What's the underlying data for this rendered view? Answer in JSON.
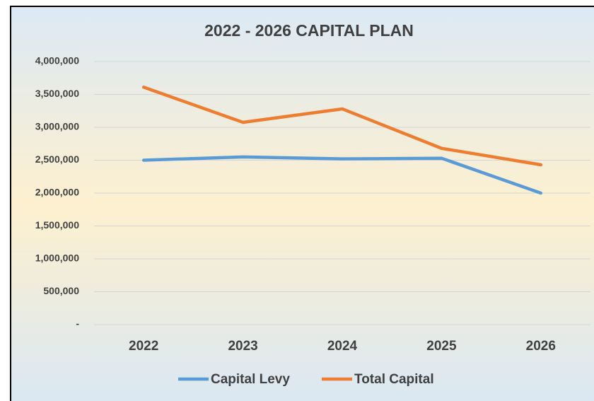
{
  "chart_data": {
    "type": "line",
    "title": "2022 - 2026 CAPITAL PLAN",
    "categories": [
      "2022",
      "2023",
      "2024",
      "2025",
      "2026"
    ],
    "series": [
      {
        "name": "Capital Levy",
        "color": "#5b9bd5",
        "values": [
          2500000,
          2550000,
          2520000,
          2530000,
          2000000
        ]
      },
      {
        "name": "Total Capital",
        "color": "#ed7d31",
        "values": [
          3610000,
          3075000,
          3280000,
          2680000,
          2430000
        ]
      }
    ],
    "ylim": [
      0,
      4000000
    ],
    "yticks": [
      {
        "value": 0,
        "label": "-"
      },
      {
        "value": 500000,
        "label": "500,000"
      },
      {
        "value": 1000000,
        "label": "1,000,000"
      },
      {
        "value": 1500000,
        "label": "1,500,000"
      },
      {
        "value": 2000000,
        "label": "2,000,000"
      },
      {
        "value": 2500000,
        "label": "2,500,000"
      },
      {
        "value": 3000000,
        "label": "3,000,000"
      },
      {
        "value": 3500000,
        "label": "3,500,000"
      },
      {
        "value": 4000000,
        "label": "4,000,000"
      }
    ],
    "grid": true,
    "legend": "bottom"
  }
}
